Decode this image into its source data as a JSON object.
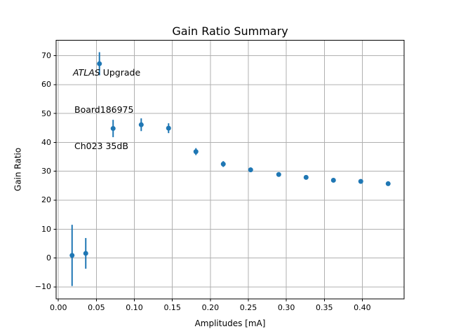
{
  "chart_data": {
    "type": "scatter",
    "title": "Gain Ratio Summary",
    "xlabel": "Amplitudes [mA]",
    "ylabel": "Gain Ratio",
    "annotation": {
      "line1_italic": "ATLAS",
      "line1_rest": " Upgrade",
      "line2": "Board186975",
      "line3": "Ch023 35dB"
    },
    "x": [
      0.018,
      0.036,
      0.054,
      0.072,
      0.109,
      0.145,
      0.181,
      0.217,
      0.253,
      0.29,
      0.326,
      0.362,
      0.398,
      0.434
    ],
    "y": [
      0.9,
      1.6,
      67.2,
      44.8,
      46.1,
      44.9,
      36.8,
      32.5,
      30.5,
      28.9,
      27.9,
      26.9,
      26.5,
      25.7
    ],
    "yerr": [
      10.6,
      5.3,
      4.0,
      3.0,
      2.2,
      1.7,
      1.2,
      1.0,
      0.8,
      0.5,
      0.45,
      0.4,
      0.35,
      0.3
    ],
    "xlim": [
      -0.003,
      0.455
    ],
    "ylim": [
      -14.2,
      75.3
    ],
    "x_ticks": [
      0.0,
      0.05,
      0.1,
      0.15,
      0.2,
      0.25,
      0.3,
      0.35,
      0.4
    ],
    "x_tick_labels": [
      "0.00",
      "0.05",
      "0.10",
      "0.15",
      "0.20",
      "0.25",
      "0.30",
      "0.35",
      "0.40"
    ],
    "y_ticks": [
      -10,
      0,
      10,
      20,
      30,
      40,
      50,
      60,
      70
    ],
    "y_tick_labels": [
      "−10",
      "0",
      "10",
      "20",
      "30",
      "40",
      "50",
      "60",
      "70"
    ],
    "grid": true,
    "legend": "none",
    "marker": "circle",
    "colors": {
      "marker": "#1f77b4",
      "grid": "#b0b0b0",
      "axes": "#000000",
      "background": "#ffffff"
    }
  }
}
